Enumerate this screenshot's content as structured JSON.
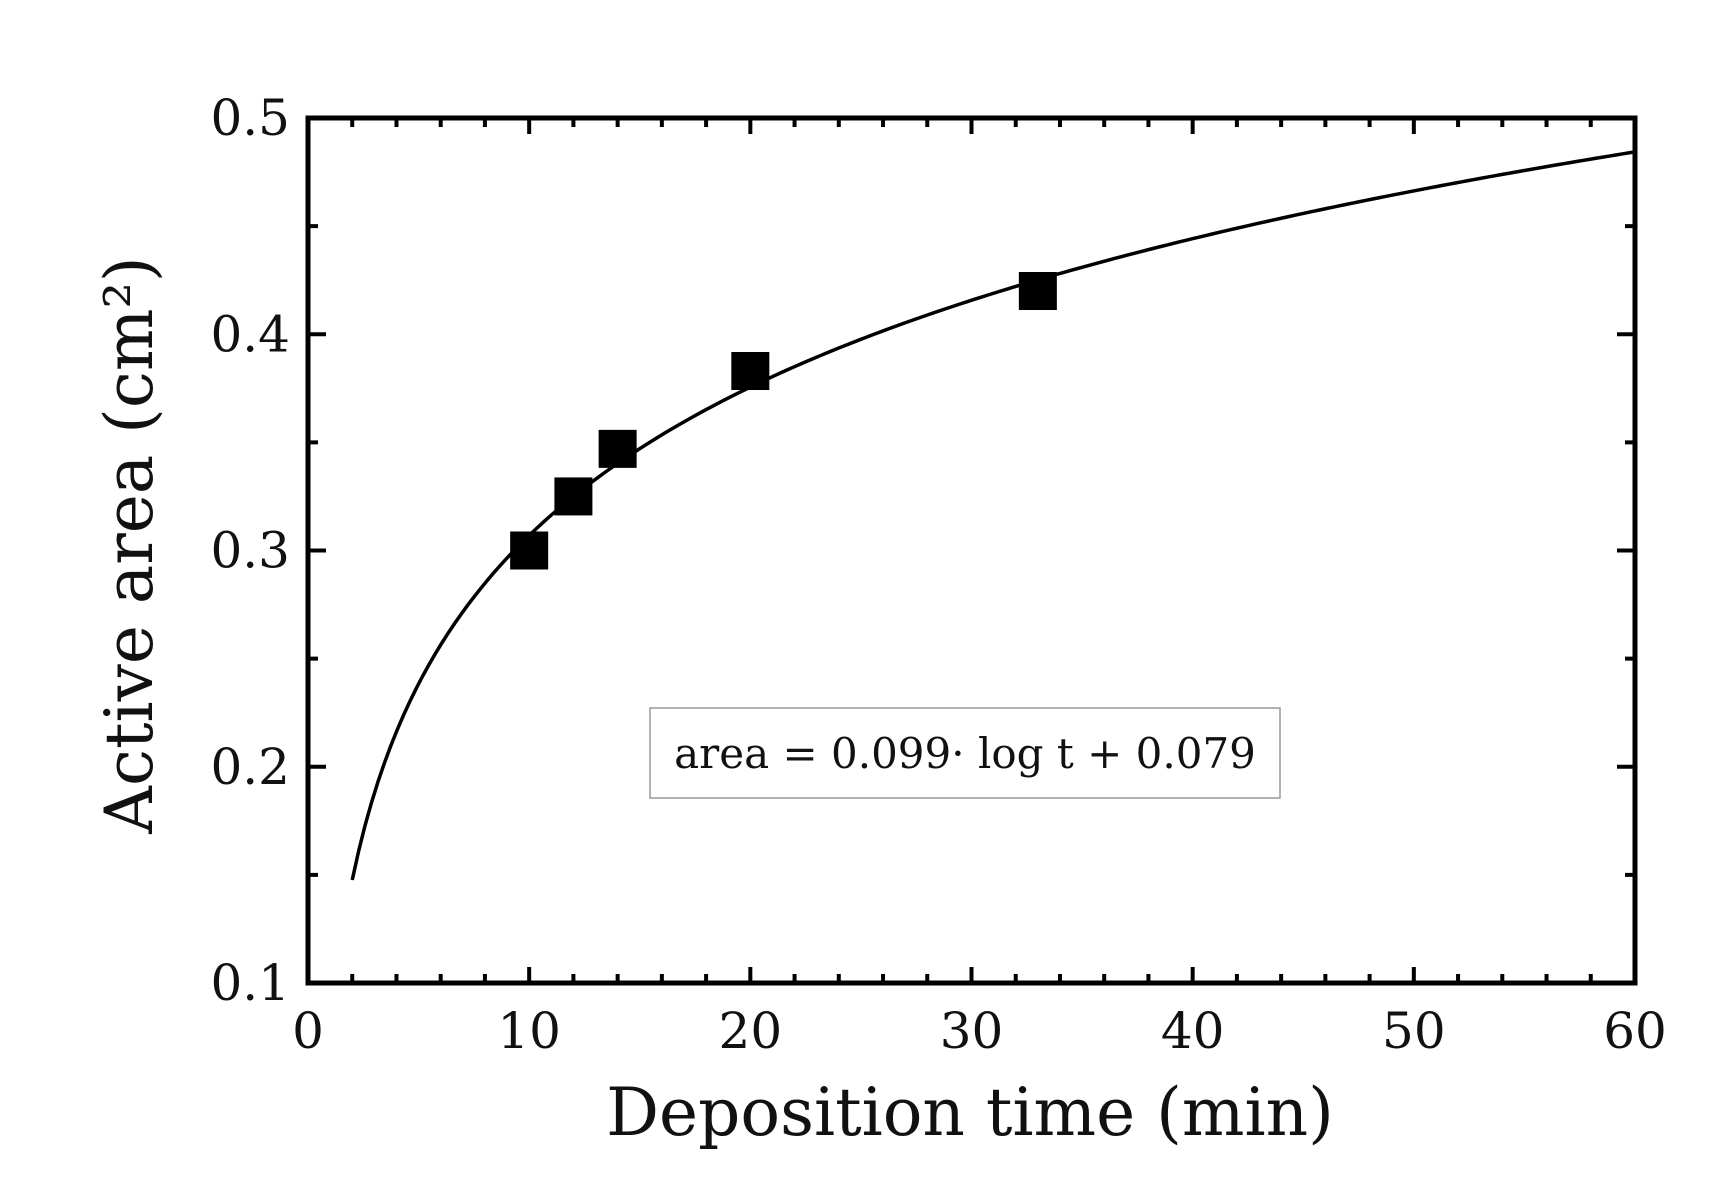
{
  "chart_data": {
    "type": "scatter",
    "title": "",
    "xlabel": "Deposition time (min)",
    "ylabel": "Active area (cm²)",
    "xlim": [
      0,
      60
    ],
    "ylim": [
      0.1,
      0.5
    ],
    "x_ticks": [
      0,
      10,
      20,
      30,
      40,
      50,
      60
    ],
    "x_tick_labels": [
      "0",
      "10",
      "20",
      "30",
      "40",
      "50",
      "60"
    ],
    "y_ticks": [
      0.1,
      0.2,
      0.3,
      0.4,
      0.5
    ],
    "y_tick_labels": [
      "0.1",
      "0.2",
      "0.3",
      "0.4",
      "0.5"
    ],
    "grid": false,
    "legend": "none",
    "series": [
      {
        "type": "scatter",
        "marker": "square",
        "color": "#000000",
        "x": [
          10,
          12,
          14,
          20,
          33
        ],
        "y": [
          0.3,
          0.325,
          0.347,
          0.383,
          0.42
        ]
      },
      {
        "type": "line",
        "color": "#000000",
        "fit": {
          "slope": 0.099,
          "intercept": 0.079,
          "x_range": [
            2,
            60
          ]
        }
      }
    ],
    "annotations": [
      {
        "text": "area = 0.099· log t + 0.079"
      }
    ]
  }
}
